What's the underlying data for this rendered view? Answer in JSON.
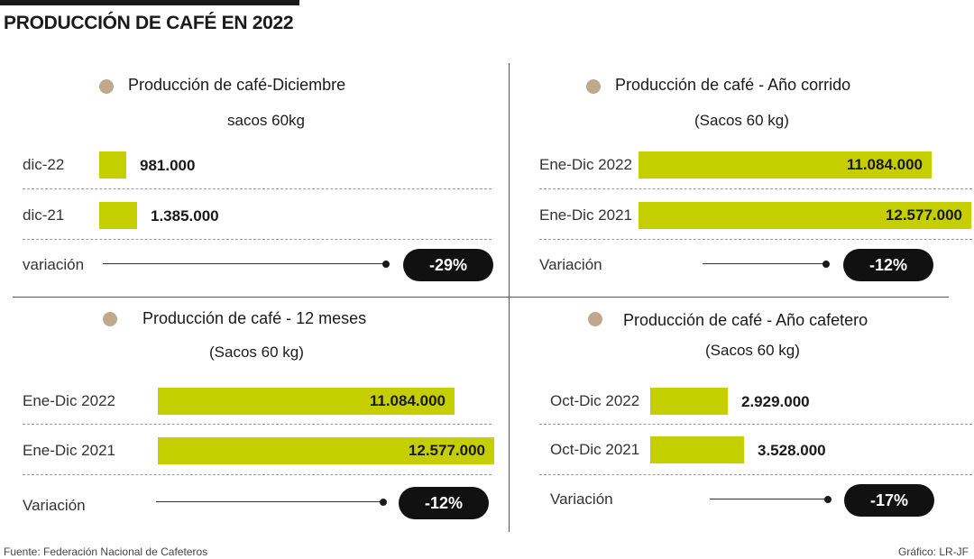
{
  "title": "PRODUCCIÓN DE CAFÉ EN 2022",
  "source": "Fuente: Federación Nacional de Cafeteros",
  "credit": "Gráfico: LR-JF",
  "colors": {
    "bar": "#c5cf00",
    "dot": "#bfa88b",
    "pill": "#111111"
  },
  "chart_data": [
    {
      "type": "bar",
      "title": "Producción de café-Diciembre",
      "unit": "sacos 60kg",
      "categories": [
        "dic-22",
        "dic-21"
      ],
      "values": [
        981000,
        1385000
      ],
      "value_labels": [
        "981.000",
        "1.385.000"
      ],
      "variation_label": "variación",
      "variation": "-29%"
    },
    {
      "type": "bar",
      "title": "Producción de café - Año corrido",
      "unit": "(Sacos 60 kg)",
      "categories": [
        "Ene-Dic 2022",
        "Ene-Dic 2021"
      ],
      "values": [
        11084000,
        12577000
      ],
      "value_labels": [
        "11.084.000",
        "12.577.000"
      ],
      "variation_label": "Variación",
      "variation": "-12%"
    },
    {
      "type": "bar",
      "title": "Producción de café - 12 meses",
      "unit": "(Sacos 60 kg)",
      "categories": [
        "Ene-Dic 2022",
        "Ene-Dic 2021"
      ],
      "values": [
        11084000,
        12577000
      ],
      "value_labels": [
        "11.084.000",
        "12.577.000"
      ],
      "variation_label": "Variación",
      "variation": "-12%"
    },
    {
      "type": "bar",
      "title": "Producción de café - Año cafetero",
      "unit": "(Sacos 60 kg)",
      "categories": [
        "Oct-Dic 2022",
        "Oct-Dic 2021"
      ],
      "values": [
        2929000,
        3528000
      ],
      "value_labels": [
        "2.929.000",
        "3.528.000"
      ],
      "variation_label": "Variación",
      "variation": "-17%"
    }
  ]
}
